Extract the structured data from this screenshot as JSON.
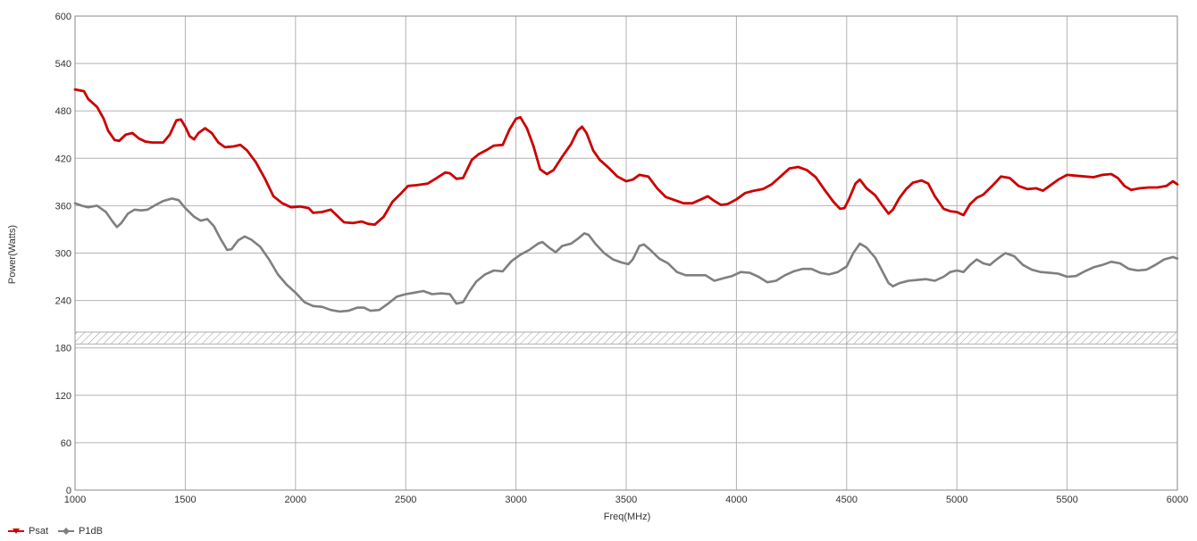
{
  "chart_data": {
    "type": "line",
    "xlabel": "Freq(MHz)",
    "ylabel": "Power(Watts)",
    "xlim": [
      1000,
      6000
    ],
    "ylim": [
      0,
      600
    ],
    "x_ticks": [
      1000,
      1500,
      2000,
      2500,
      3000,
      3500,
      4000,
      4500,
      5000,
      5500,
      6000
    ],
    "y_ticks": [
      0,
      60,
      120,
      180,
      240,
      300,
      360,
      420,
      480,
      540,
      600
    ],
    "grid": true,
    "hatched_band": [
      185,
      200
    ],
    "legend_position": "bottom-left",
    "series": [
      {
        "name": "Psat",
        "color": "#cc0000",
        "points": [
          [
            1000,
            507
          ],
          [
            1040,
            505
          ],
          [
            1060,
            495
          ],
          [
            1100,
            485
          ],
          [
            1130,
            470
          ],
          [
            1150,
            455
          ],
          [
            1180,
            443
          ],
          [
            1200,
            442
          ],
          [
            1230,
            450
          ],
          [
            1260,
            452
          ],
          [
            1290,
            445
          ],
          [
            1320,
            441
          ],
          [
            1350,
            440
          ],
          [
            1400,
            440
          ],
          [
            1430,
            450
          ],
          [
            1460,
            468
          ],
          [
            1480,
            469
          ],
          [
            1500,
            460
          ],
          [
            1520,
            448
          ],
          [
            1540,
            444
          ],
          [
            1560,
            452
          ],
          [
            1590,
            458
          ],
          [
            1620,
            452
          ],
          [
            1650,
            440
          ],
          [
            1680,
            434
          ],
          [
            1720,
            435
          ],
          [
            1750,
            437
          ],
          [
            1780,
            430
          ],
          [
            1820,
            415
          ],
          [
            1860,
            395
          ],
          [
            1900,
            372
          ],
          [
            1940,
            363
          ],
          [
            1980,
            358
          ],
          [
            2020,
            359
          ],
          [
            2060,
            357
          ],
          [
            2080,
            351
          ],
          [
            2120,
            352
          ],
          [
            2160,
            355
          ],
          [
            2190,
            347
          ],
          [
            2220,
            339
          ],
          [
            2260,
            338
          ],
          [
            2300,
            340
          ],
          [
            2330,
            337
          ],
          [
            2360,
            336
          ],
          [
            2400,
            346
          ],
          [
            2440,
            365
          ],
          [
            2480,
            376
          ],
          [
            2510,
            385
          ],
          [
            2550,
            386
          ],
          [
            2600,
            388
          ],
          [
            2640,
            395
          ],
          [
            2680,
            402
          ],
          [
            2700,
            401
          ],
          [
            2730,
            394
          ],
          [
            2760,
            395
          ],
          [
            2800,
            418
          ],
          [
            2830,
            425
          ],
          [
            2870,
            431
          ],
          [
            2900,
            436
          ],
          [
            2940,
            437
          ],
          [
            2970,
            456
          ],
          [
            3000,
            470
          ],
          [
            3020,
            472
          ],
          [
            3050,
            458
          ],
          [
            3080,
            435
          ],
          [
            3110,
            406
          ],
          [
            3140,
            400
          ],
          [
            3170,
            405
          ],
          [
            3210,
            422
          ],
          [
            3250,
            438
          ],
          [
            3280,
            455
          ],
          [
            3300,
            460
          ],
          [
            3320,
            452
          ],
          [
            3350,
            430
          ],
          [
            3380,
            418
          ],
          [
            3420,
            408
          ],
          [
            3460,
            397
          ],
          [
            3500,
            391
          ],
          [
            3530,
            393
          ],
          [
            3560,
            399
          ],
          [
            3600,
            397
          ],
          [
            3640,
            382
          ],
          [
            3680,
            371
          ],
          [
            3720,
            367
          ],
          [
            3760,
            363
          ],
          [
            3800,
            363
          ],
          [
            3840,
            368
          ],
          [
            3870,
            372
          ],
          [
            3900,
            366
          ],
          [
            3930,
            361
          ],
          [
            3960,
            362
          ],
          [
            4000,
            368
          ],
          [
            4040,
            376
          ],
          [
            4080,
            379
          ],
          [
            4120,
            381
          ],
          [
            4160,
            387
          ],
          [
            4200,
            397
          ],
          [
            4240,
            407
          ],
          [
            4280,
            409
          ],
          [
            4320,
            405
          ],
          [
            4360,
            396
          ],
          [
            4400,
            380
          ],
          [
            4440,
            365
          ],
          [
            4470,
            356
          ],
          [
            4490,
            357
          ],
          [
            4510,
            368
          ],
          [
            4540,
            388
          ],
          [
            4560,
            393
          ],
          [
            4590,
            382
          ],
          [
            4630,
            373
          ],
          [
            4660,
            361
          ],
          [
            4690,
            350
          ],
          [
            4710,
            355
          ],
          [
            4740,
            370
          ],
          [
            4770,
            381
          ],
          [
            4800,
            389
          ],
          [
            4840,
            392
          ],
          [
            4870,
            388
          ],
          [
            4900,
            372
          ],
          [
            4940,
            356
          ],
          [
            4970,
            353
          ],
          [
            5000,
            352
          ],
          [
            5030,
            348
          ],
          [
            5060,
            362
          ],
          [
            5090,
            370
          ],
          [
            5120,
            374
          ],
          [
            5160,
            385
          ],
          [
            5200,
            397
          ],
          [
            5240,
            395
          ],
          [
            5280,
            385
          ],
          [
            5320,
            381
          ],
          [
            5360,
            382
          ],
          [
            5390,
            379
          ],
          [
            5420,
            385
          ],
          [
            5460,
            393
          ],
          [
            5500,
            399
          ],
          [
            5540,
            398
          ],
          [
            5580,
            397
          ],
          [
            5620,
            396
          ],
          [
            5660,
            399
          ],
          [
            5700,
            400
          ],
          [
            5730,
            395
          ],
          [
            5760,
            385
          ],
          [
            5790,
            380
          ],
          [
            5830,
            382
          ],
          [
            5870,
            383
          ],
          [
            5910,
            383
          ],
          [
            5950,
            385
          ],
          [
            5980,
            391
          ],
          [
            6000,
            387
          ]
        ]
      },
      {
        "name": "P1dB",
        "color": "#7f7f7f",
        "points": [
          [
            1000,
            363
          ],
          [
            1030,
            360
          ],
          [
            1060,
            358
          ],
          [
            1100,
            360
          ],
          [
            1140,
            352
          ],
          [
            1170,
            340
          ],
          [
            1190,
            333
          ],
          [
            1210,
            338
          ],
          [
            1240,
            350
          ],
          [
            1270,
            355
          ],
          [
            1300,
            354
          ],
          [
            1330,
            355
          ],
          [
            1360,
            360
          ],
          [
            1400,
            366
          ],
          [
            1440,
            369
          ],
          [
            1470,
            367
          ],
          [
            1500,
            357
          ],
          [
            1540,
            346
          ],
          [
            1570,
            341
          ],
          [
            1600,
            343
          ],
          [
            1630,
            334
          ],
          [
            1660,
            318
          ],
          [
            1690,
            304
          ],
          [
            1710,
            305
          ],
          [
            1740,
            316
          ],
          [
            1770,
            321
          ],
          [
            1800,
            317
          ],
          [
            1840,
            308
          ],
          [
            1880,
            292
          ],
          [
            1920,
            273
          ],
          [
            1960,
            260
          ],
          [
            2000,
            250
          ],
          [
            2040,
            238
          ],
          [
            2080,
            233
          ],
          [
            2120,
            232
          ],
          [
            2160,
            228
          ],
          [
            2200,
            226
          ],
          [
            2240,
            227
          ],
          [
            2280,
            231
          ],
          [
            2310,
            231
          ],
          [
            2340,
            227
          ],
          [
            2380,
            228
          ],
          [
            2420,
            236
          ],
          [
            2460,
            245
          ],
          [
            2500,
            248
          ],
          [
            2540,
            250
          ],
          [
            2580,
            252
          ],
          [
            2620,
            248
          ],
          [
            2660,
            249
          ],
          [
            2700,
            248
          ],
          [
            2730,
            236
          ],
          [
            2760,
            238
          ],
          [
            2790,
            252
          ],
          [
            2820,
            264
          ],
          [
            2860,
            273
          ],
          [
            2900,
            278
          ],
          [
            2940,
            277
          ],
          [
            2980,
            290
          ],
          [
            3020,
            298
          ],
          [
            3060,
            304
          ],
          [
            3100,
            312
          ],
          [
            3120,
            314
          ],
          [
            3150,
            307
          ],
          [
            3180,
            301
          ],
          [
            3210,
            309
          ],
          [
            3250,
            312
          ],
          [
            3280,
            318
          ],
          [
            3310,
            325
          ],
          [
            3330,
            323
          ],
          [
            3360,
            312
          ],
          [
            3400,
            300
          ],
          [
            3440,
            292
          ],
          [
            3480,
            288
          ],
          [
            3510,
            286
          ],
          [
            3530,
            292
          ],
          [
            3560,
            309
          ],
          [
            3580,
            311
          ],
          [
            3610,
            304
          ],
          [
            3650,
            293
          ],
          [
            3690,
            287
          ],
          [
            3730,
            276
          ],
          [
            3770,
            272
          ],
          [
            3820,
            272
          ],
          [
            3860,
            272
          ],
          [
            3900,
            265
          ],
          [
            3940,
            268
          ],
          [
            3980,
            271
          ],
          [
            4020,
            276
          ],
          [
            4060,
            275
          ],
          [
            4100,
            270
          ],
          [
            4140,
            263
          ],
          [
            4180,
            265
          ],
          [
            4220,
            272
          ],
          [
            4260,
            277
          ],
          [
            4300,
            280
          ],
          [
            4340,
            280
          ],
          [
            4380,
            275
          ],
          [
            4420,
            273
          ],
          [
            4460,
            276
          ],
          [
            4500,
            283
          ],
          [
            4530,
            300
          ],
          [
            4560,
            312
          ],
          [
            4590,
            307
          ],
          [
            4630,
            294
          ],
          [
            4660,
            278
          ],
          [
            4690,
            262
          ],
          [
            4710,
            258
          ],
          [
            4740,
            262
          ],
          [
            4780,
            265
          ],
          [
            4820,
            266
          ],
          [
            4860,
            267
          ],
          [
            4900,
            265
          ],
          [
            4940,
            270
          ],
          [
            4970,
            276
          ],
          [
            5000,
            278
          ],
          [
            5030,
            276
          ],
          [
            5060,
            285
          ],
          [
            5090,
            292
          ],
          [
            5120,
            287
          ],
          [
            5150,
            285
          ],
          [
            5180,
            292
          ],
          [
            5220,
            300
          ],
          [
            5260,
            296
          ],
          [
            5300,
            285
          ],
          [
            5340,
            279
          ],
          [
            5380,
            276
          ],
          [
            5420,
            275
          ],
          [
            5460,
            274
          ],
          [
            5500,
            270
          ],
          [
            5540,
            271
          ],
          [
            5580,
            277
          ],
          [
            5620,
            282
          ],
          [
            5660,
            285
          ],
          [
            5700,
            289
          ],
          [
            5740,
            287
          ],
          [
            5780,
            280
          ],
          [
            5820,
            278
          ],
          [
            5860,
            279
          ],
          [
            5900,
            285
          ],
          [
            5940,
            292
          ],
          [
            5980,
            295
          ],
          [
            6000,
            293
          ]
        ]
      }
    ]
  }
}
